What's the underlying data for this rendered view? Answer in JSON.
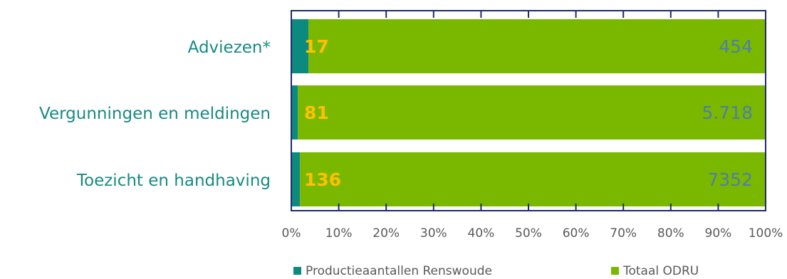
{
  "chart_data": {
    "type": "bar",
    "orientation": "horizontal",
    "stacked": "percent",
    "categories": [
      "Adviezen*",
      "Vergunningen en meldingen",
      "Toezicht en handhaving"
    ],
    "series": [
      {
        "name": "Productieaantallen Renswoude",
        "values": [
          17,
          81,
          136
        ],
        "labels": [
          "17",
          "81",
          "136"
        ],
        "color": "#0d8a80"
      },
      {
        "name": "Totaal ODRU",
        "values": [
          454,
          5718,
          7352
        ],
        "labels": [
          "454",
          "5.718",
          "7352"
        ],
        "color": "#7ab800"
      }
    ],
    "x_ticks": [
      "0%",
      "10%",
      "20%",
      "30%",
      "40%",
      "50%",
      "60%",
      "70%",
      "80%",
      "90%",
      "100%"
    ],
    "xlim": [
      0,
      100
    ],
    "legend_position": "bottom",
    "grid": false,
    "colors": {
      "category_label": "#178a82",
      "series_a_label": "#ffc000",
      "series_b_label": "#4f7fa6",
      "axis": "#1f2a6b"
    }
  }
}
